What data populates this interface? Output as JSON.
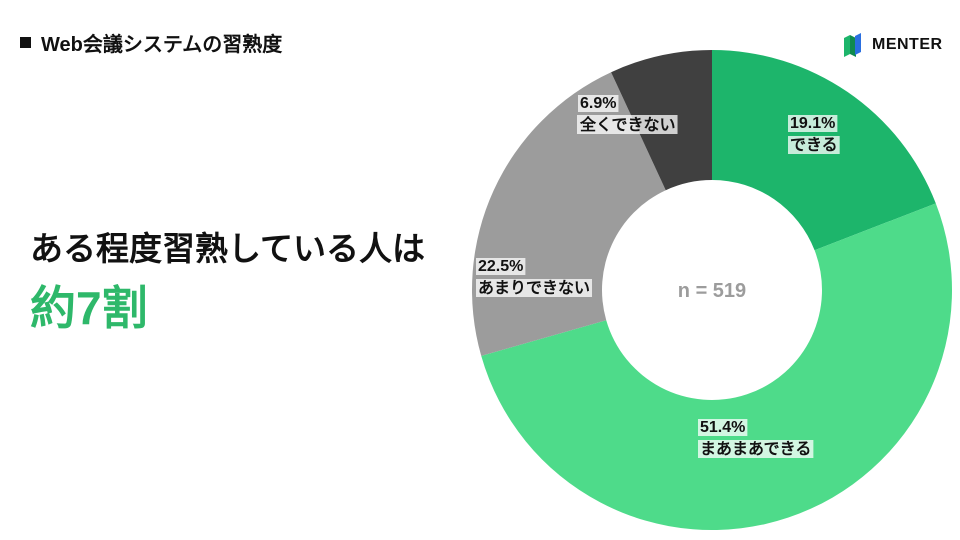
{
  "header": {
    "title": "Web会議システムの習熟度"
  },
  "brand": {
    "name": "MENTER",
    "icon": "menter-logo-icon"
  },
  "headline": {
    "line1": "ある程度習熟している人は",
    "line2": "約7割",
    "accent_color": "#2EB86A"
  },
  "chart_data": {
    "type": "pie",
    "variant": "donut",
    "title": "",
    "center_label": "n = 519",
    "categories": [
      "できる",
      "まあまあできる",
      "あまりできない",
      "全くできない"
    ],
    "values": [
      19.1,
      51.4,
      22.5,
      6.9
    ],
    "value_labels": [
      "19.1%",
      "51.4%",
      "22.5%",
      "6.9%"
    ],
    "colors": [
      "#1DB56B",
      "#4EDB8A",
      "#9C9C9C",
      "#404040"
    ],
    "start_angle_deg": 0,
    "direction": "clockwise",
    "legend": "none"
  }
}
